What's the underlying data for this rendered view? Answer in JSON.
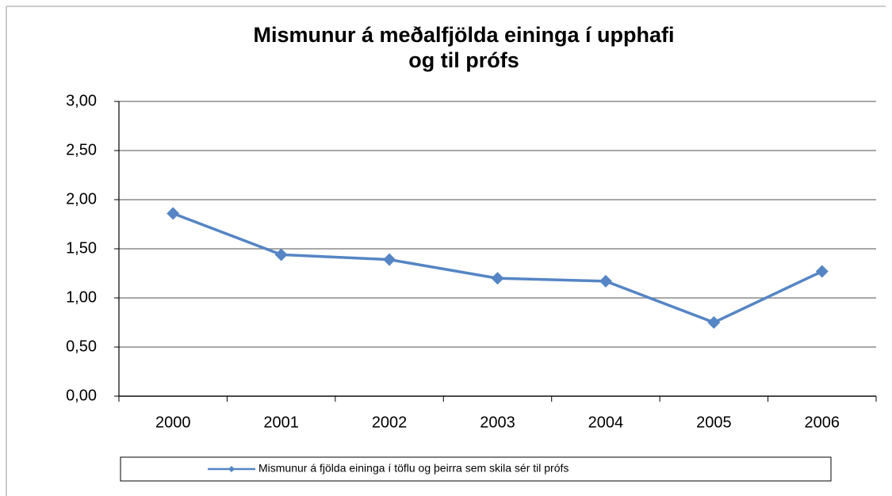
{
  "chart_data": {
    "type": "line",
    "title": [
      "Mismunur á meðalfjölda eininga í upphafi",
      "og til prófs"
    ],
    "categories": [
      "2000",
      "2001",
      "2002",
      "2003",
      "2004",
      "2005",
      "2006"
    ],
    "series": [
      {
        "name": "Mismunur á fjölda eininga  í töflu og þeirra sem skila sér til prófs",
        "color": "#5585c4",
        "values": [
          1.86,
          1.44,
          1.39,
          1.2,
          1.17,
          0.75,
          1.27
        ]
      }
    ],
    "ylim": [
      0,
      3
    ],
    "yticks": [
      {
        "value": 0,
        "label": "0,00"
      },
      {
        "value": 0.5,
        "label": "0,50"
      },
      {
        "value": 1,
        "label": "1,00"
      },
      {
        "value": 1.5,
        "label": "1,50"
      },
      {
        "value": 2,
        "label": "2,00"
      },
      {
        "value": 2.5,
        "label": "2,50"
      },
      {
        "value": 3,
        "label": "3,00"
      }
    ],
    "grid": true
  }
}
